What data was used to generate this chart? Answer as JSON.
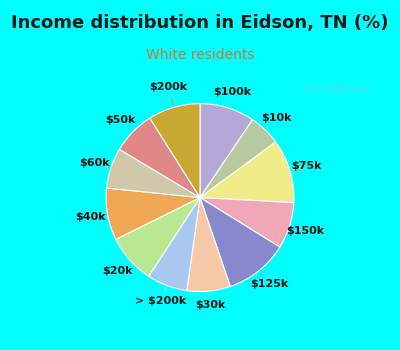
{
  "title": "Income distribution in Eidson, TN (%)",
  "subtitle": "White residents",
  "background_outer": "#00ffff",
  "background_chart": "#e8f5ee",
  "labels": [
    "$100k",
    "$10k",
    "$75k",
    "$150k",
    "$125k",
    "$30k",
    "> $200k",
    "$20k",
    "$40k",
    "$60k",
    "$50k",
    "$200k"
  ],
  "sizes": [
    9.5,
    5.5,
    11.0,
    8.0,
    11.0,
    7.5,
    7.0,
    8.5,
    9.0,
    7.0,
    7.5,
    9.0
  ],
  "colors": [
    "#b3a8d8",
    "#b8c9a0",
    "#f0ec88",
    "#f0a8b8",
    "#8888cc",
    "#f5c8a8",
    "#a8c8f0",
    "#b8e890",
    "#f0a855",
    "#d0c8a8",
    "#e08888",
    "#c8a830"
  ],
  "startangle": 90,
  "title_fontsize": 13,
  "subtitle_fontsize": 10,
  "label_fontsize": 8,
  "watermark": "City-Data.com",
  "title_color": "#1a1a1a",
  "subtitle_color": "#cc7733"
}
